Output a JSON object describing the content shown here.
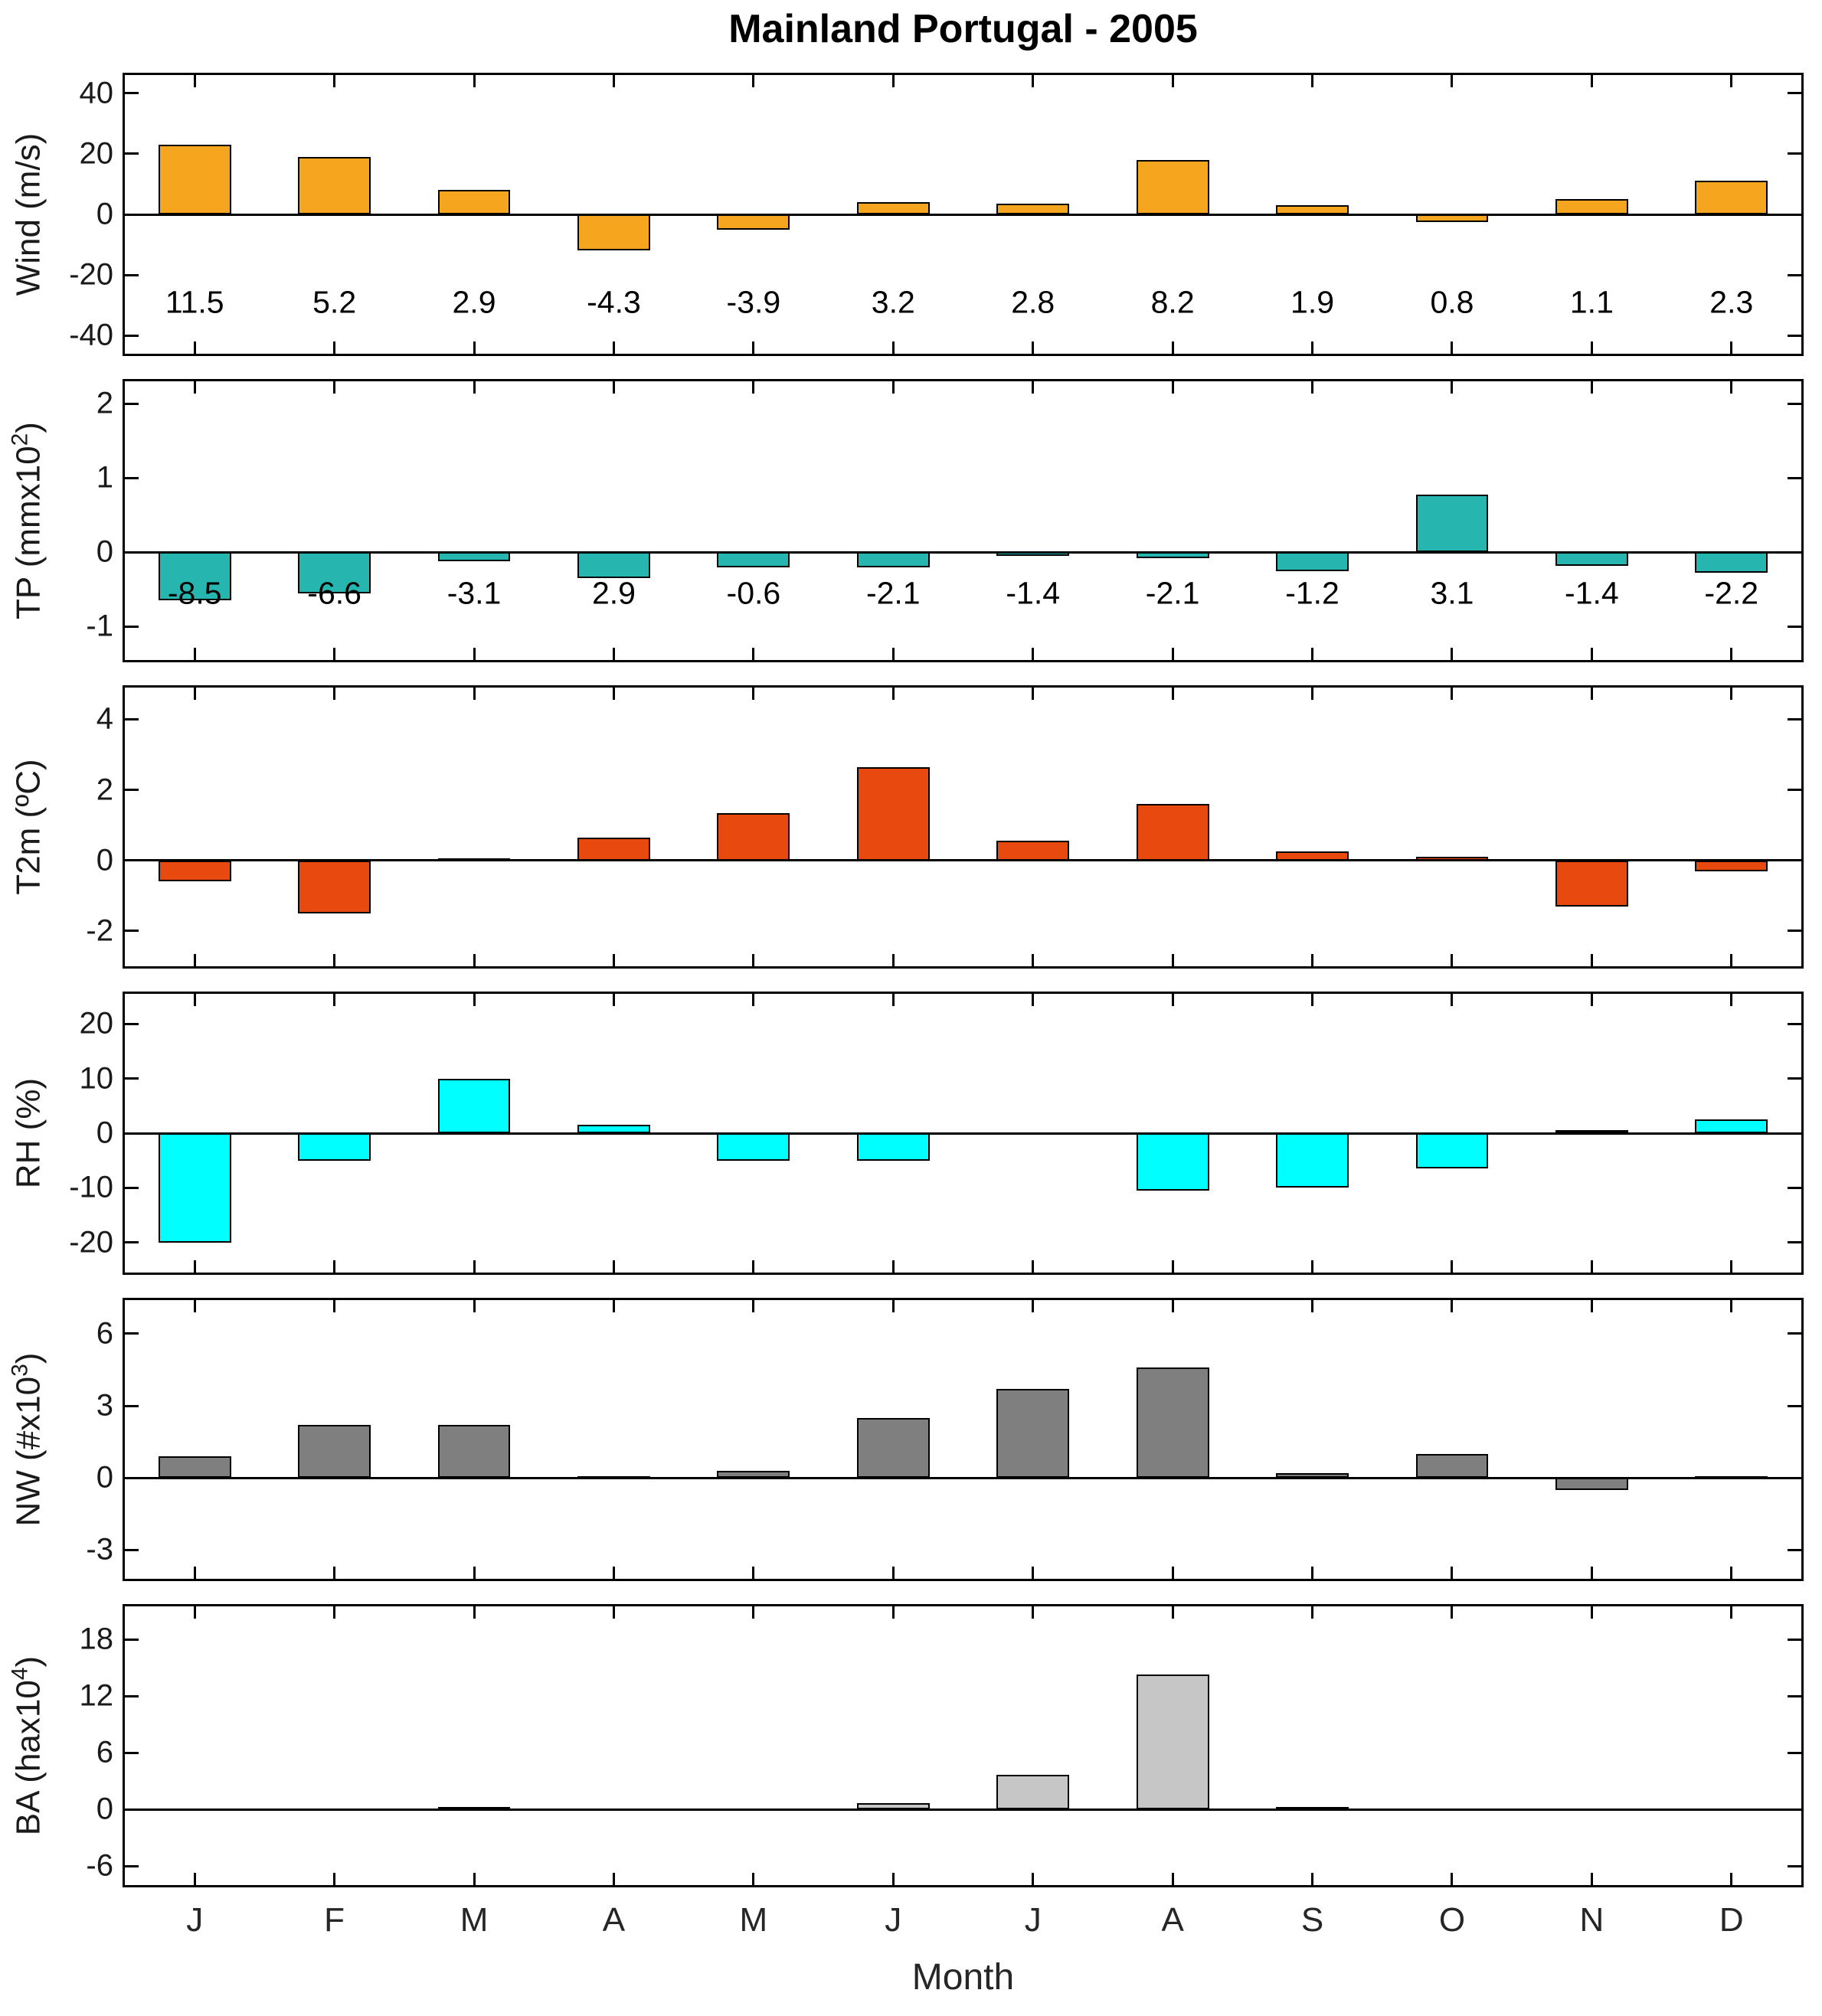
{
  "chart_data": {
    "type": "bar",
    "title": "Mainland Portugal - 2005",
    "xlabel": "Month",
    "categories": [
      "J",
      "F",
      "M",
      "A",
      "M",
      "J",
      "J",
      "A",
      "S",
      "O",
      "N",
      "D"
    ],
    "legend": "none",
    "grid": false,
    "panels": [
      {
        "name": "wind",
        "ylabel_pre": "Wind (m/s)",
        "ylabel_sup": "",
        "ylabel_post": "",
        "color": "#F6A51F",
        "ylim": [
          -46,
          46
        ],
        "yticks": [
          40,
          20,
          0,
          -20,
          -40
        ],
        "values": [
          23,
          19,
          8,
          -12,
          -5,
          4,
          3.5,
          18,
          3,
          -2.5,
          5,
          11
        ],
        "value_labels": [
          "11.5",
          "5.2",
          "2.9",
          "-4.3",
          "-3.9",
          "3.2",
          "2.8",
          "8.2",
          "1.9",
          "0.8",
          "1.1",
          "2.3"
        ],
        "label_y": -29
      },
      {
        "name": "tp",
        "ylabel_pre": "TP (mmx10",
        "ylabel_sup": "2",
        "ylabel_post": ")",
        "color": "#27B5B0",
        "ylim": [
          -1.45,
          2.3
        ],
        "yticks": [
          2,
          1,
          0,
          -1
        ],
        "values": [
          -0.65,
          -0.55,
          -0.12,
          -0.35,
          -0.2,
          -0.2,
          -0.05,
          -0.08,
          -0.25,
          0.78,
          -0.18,
          -0.28
        ],
        "value_labels": [
          "-8.5",
          "-6.6",
          "-3.1",
          "2.9",
          "-0.6",
          "-2.1",
          "-1.4",
          "-2.1",
          "-1.2",
          "3.1",
          "-1.4",
          "-2.2"
        ],
        "label_y": -0.55
      },
      {
        "name": "t2m",
        "ylabel_pre": "T2m (ºC)",
        "ylabel_sup": "",
        "ylabel_post": "",
        "color": "#E8490F",
        "ylim": [
          -3.0,
          4.9
        ],
        "yticks": [
          4,
          2,
          0,
          -2
        ],
        "values": [
          -0.6,
          -1.5,
          0.07,
          0.65,
          1.35,
          2.65,
          0.55,
          1.6,
          0.25,
          0.1,
          -1.3,
          -0.3
        ],
        "value_labels": null,
        "label_y": null
      },
      {
        "name": "rh",
        "ylabel_pre": "RH (%)",
        "ylabel_sup": "",
        "ylabel_post": "",
        "color": "#00FFFF",
        "ylim": [
          -25.5,
          25.5
        ],
        "yticks": [
          20,
          10,
          0,
          -10,
          -20
        ],
        "values": [
          -20,
          -5,
          10,
          1.5,
          -5,
          -5,
          0,
          -10.5,
          -10,
          -6.5,
          0.5,
          2.5
        ],
        "value_labels": null,
        "label_y": null
      },
      {
        "name": "nw",
        "ylabel_pre": "NW (#x10",
        "ylabel_sup": "3",
        "ylabel_post": ")",
        "color": "#7F7F7F",
        "ylim": [
          -4.2,
          7.4
        ],
        "yticks": [
          6,
          3,
          0,
          -3
        ],
        "values": [
          0.9,
          2.2,
          2.2,
          0.07,
          0.3,
          2.5,
          3.7,
          4.6,
          0.2,
          1.0,
          -0.5,
          0.05
        ],
        "value_labels": null,
        "label_y": null
      },
      {
        "name": "ba",
        "ylabel_pre": "BA (hax10",
        "ylabel_sup": "4",
        "ylabel_post": ")",
        "color": "#C6C6C6",
        "ylim": [
          -8,
          21.5
        ],
        "yticks": [
          18,
          12,
          6,
          0,
          -6
        ],
        "values": [
          0,
          0,
          0.25,
          0,
          0,
          0.7,
          3.7,
          14.3,
          0.3,
          0,
          0,
          0
        ],
        "value_labels": null,
        "label_y": null
      }
    ]
  }
}
